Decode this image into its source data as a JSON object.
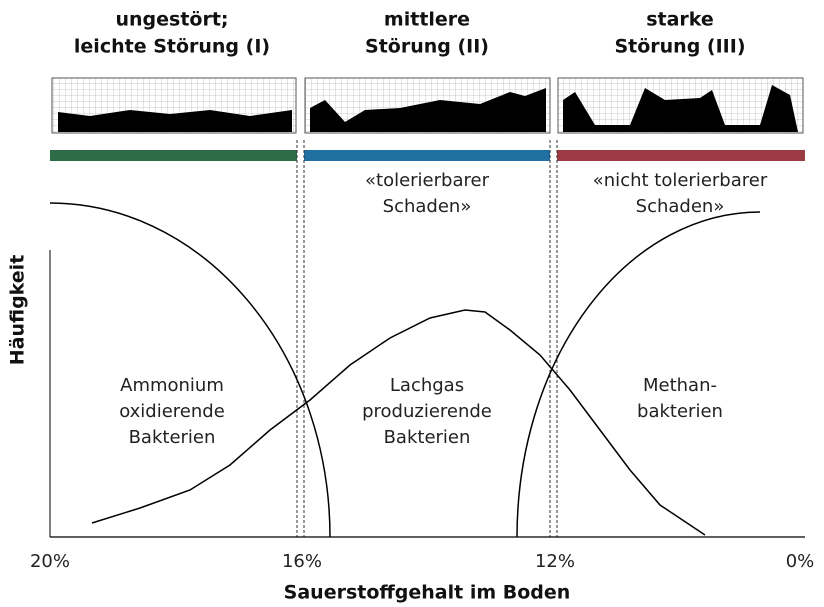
{
  "columns": [
    {
      "lines": [
        "ungestört;",
        "leichte Störung (I)"
      ]
    },
    {
      "lines": [
        "mittlere",
        "Störung (II)"
      ]
    },
    {
      "lines": [
        "starke",
        "Störung (III)"
      ]
    }
  ],
  "zones": [
    {
      "lines": [
        "«tolerierbarer",
        "Schaden»"
      ]
    },
    {
      "lines": [
        "«nicht tolerierbarer",
        "Schaden»"
      ]
    }
  ],
  "groups": [
    {
      "lines": [
        "Ammonium",
        "oxidierende",
        "Bakterien"
      ]
    },
    {
      "lines": [
        "Lachgas",
        "produzierende",
        "Bakterien"
      ]
    },
    {
      "lines": [
        "Methan-",
        "bakterien"
      ]
    }
  ],
  "x_axis": {
    "label": "Sauerstoffgehalt im Boden",
    "ticks": [
      "20%",
      "16%",
      "12%",
      "0%"
    ]
  },
  "y_axis": {
    "label": "Häufigkeit"
  }
}
